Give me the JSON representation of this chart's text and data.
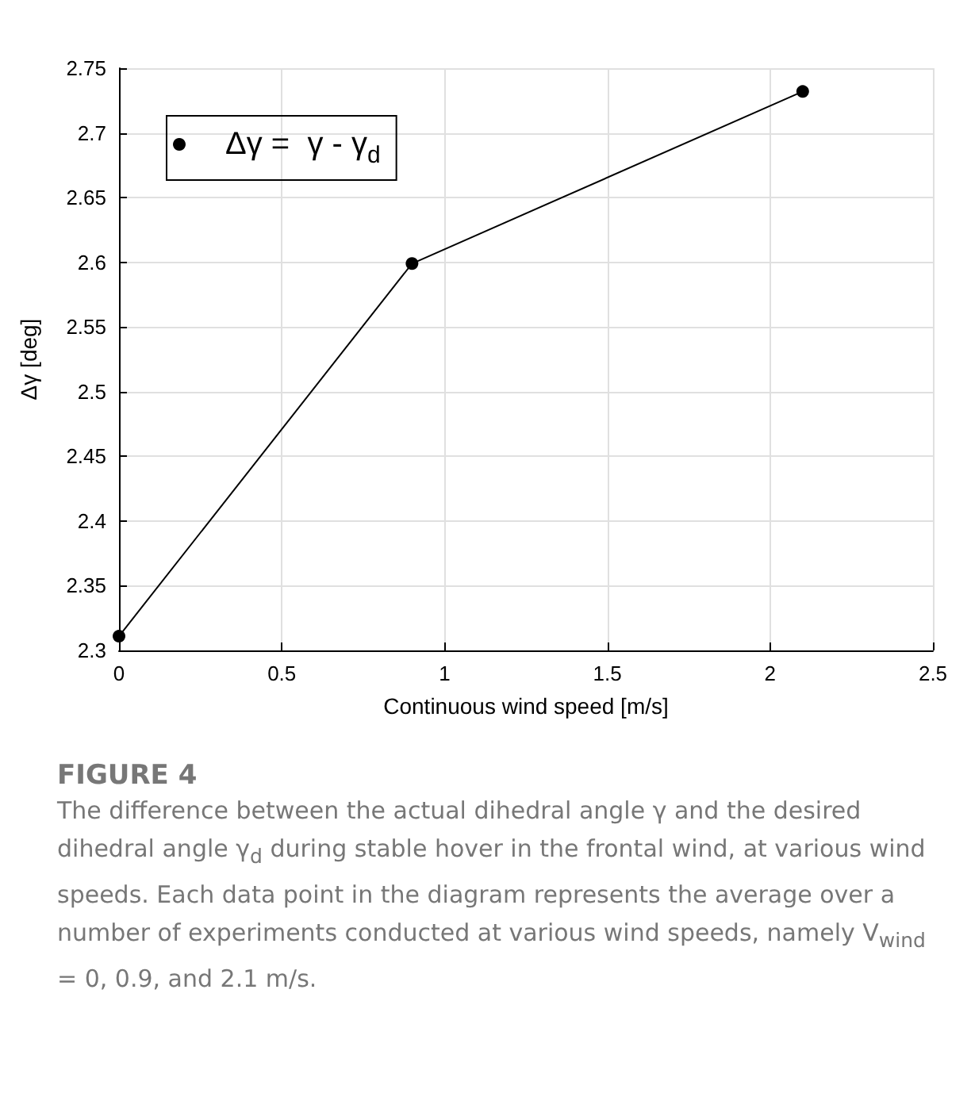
{
  "chart_data": {
    "type": "line",
    "xlabel": "Continuous wind speed [m/s]",
    "ylabel": "Δγ [deg]",
    "x": [
      0,
      0.9,
      2.1
    ],
    "series": [
      {
        "name": "Δγ =  γ - γ$_{d}$",
        "color": "#000000",
        "values": [
          2.311,
          2.599,
          2.732
        ]
      }
    ],
    "xlim": [
      0,
      2.5
    ],
    "xticks": [
      0,
      0.5,
      1,
      1.5,
      2,
      2.5
    ],
    "ylim": [
      2.3,
      2.75
    ],
    "yticks": [
      2.3,
      2.35,
      2.4,
      2.45,
      2.5,
      2.55,
      2.6,
      2.65,
      2.7,
      2.75
    ],
    "grid": true,
    "legend": "top left",
    "marker": "circle",
    "line_style": "solid",
    "annotations": [
      "FIGURE 4",
      "The difference between the actual dihedral angle γ and the desired dihedral angle γ$_{d}$ during stable hover in the frontal wind, at various wind speeds. Each data point in the diagram represents the average over a number of experiments conducted at various wind speeds, namely V$_{wind}$ = 0, 0.9, and 2.1 m/s."
    ]
  }
}
